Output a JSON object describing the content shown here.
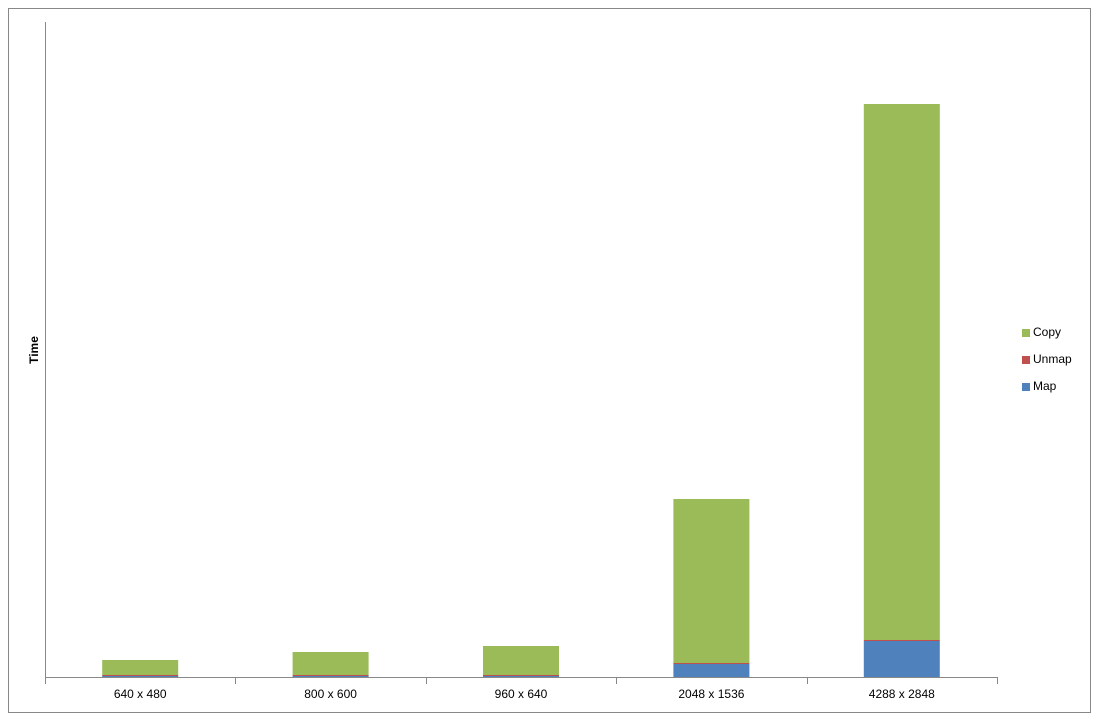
{
  "chart_data": {
    "type": "stacked-bar",
    "y_label": "Time",
    "categories": [
      "640 x 480",
      "800 x 600",
      "960 x 640",
      "2048  x 1536",
      "4288 x 2848"
    ],
    "series": [
      {
        "name": "Map",
        "color": "#4f81bd",
        "values": [
          1,
          1,
          1,
          13,
          36
        ]
      },
      {
        "name": "Unmap",
        "color": "#c0504d",
        "values": [
          1,
          1,
          1,
          1,
          1
        ]
      },
      {
        "name": "Copy",
        "color": "#9bbb59",
        "values": [
          15,
          23,
          29,
          164,
          536
        ]
      }
    ],
    "ylim": [
      0,
      655
    ],
    "legend": "right"
  }
}
